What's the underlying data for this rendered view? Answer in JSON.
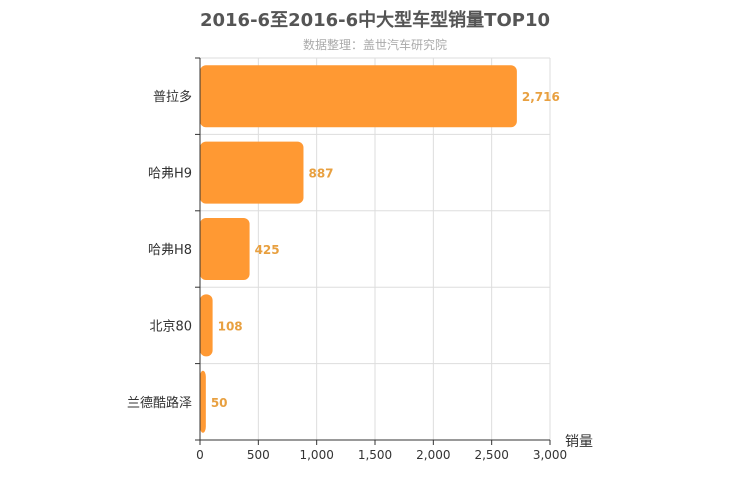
{
  "chart_data": {
    "type": "bar",
    "orientation": "horizontal",
    "title": "2016-6至2016-6中大型车型销量TOP10",
    "subtitle": "数据整理：盖世汽车研究院",
    "xlabel": "销量",
    "ylabel": "",
    "categories": [
      "普拉多",
      "哈弗H9",
      "哈弗H8",
      "北京80",
      "兰德酷路泽"
    ],
    "values": [
      2716,
      887,
      425,
      108,
      50
    ],
    "value_labels": [
      "2,716",
      "887",
      "425",
      "108",
      "50"
    ],
    "xlim": [
      0,
      3000
    ],
    "xticks": [
      0,
      500,
      1000,
      1500,
      2000,
      2500,
      3000
    ],
    "xtick_labels": [
      "0",
      "500",
      "1,000",
      "1,500",
      "2,000",
      "2,500",
      "3,000"
    ],
    "grid": true,
    "legend": "none",
    "bar_color": "#ff9933",
    "label_color": "#e8a040"
  }
}
